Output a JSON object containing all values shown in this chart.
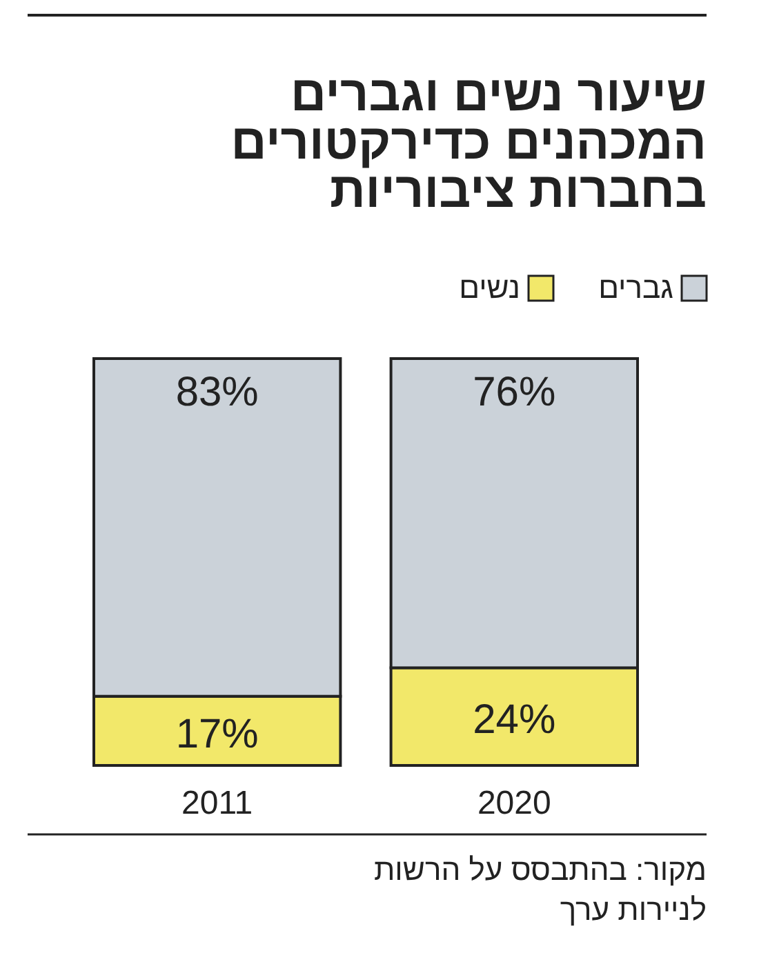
{
  "chart_data": {
    "type": "bar",
    "title": "שיעור נשים וגברים\nהמכהנים כדירקטורים\nבחברות ציבוריות",
    "categories": [
      "2011",
      "2020"
    ],
    "stacked": true,
    "legend": "top right",
    "data_labels": true,
    "series": [
      {
        "name": "נשים",
        "color": "#f2e86a",
        "values": [
          17,
          24
        ],
        "value_labels": [
          "17%",
          "24%"
        ]
      },
      {
        "name": "גברים",
        "color": "#cbd2d9",
        "values": [
          83,
          76
        ],
        "value_labels": [
          "83%",
          "76%"
        ]
      }
    ],
    "annotations": [
      "מקור: בהתבסס על הרשות\nלניירות ערך"
    ]
  }
}
